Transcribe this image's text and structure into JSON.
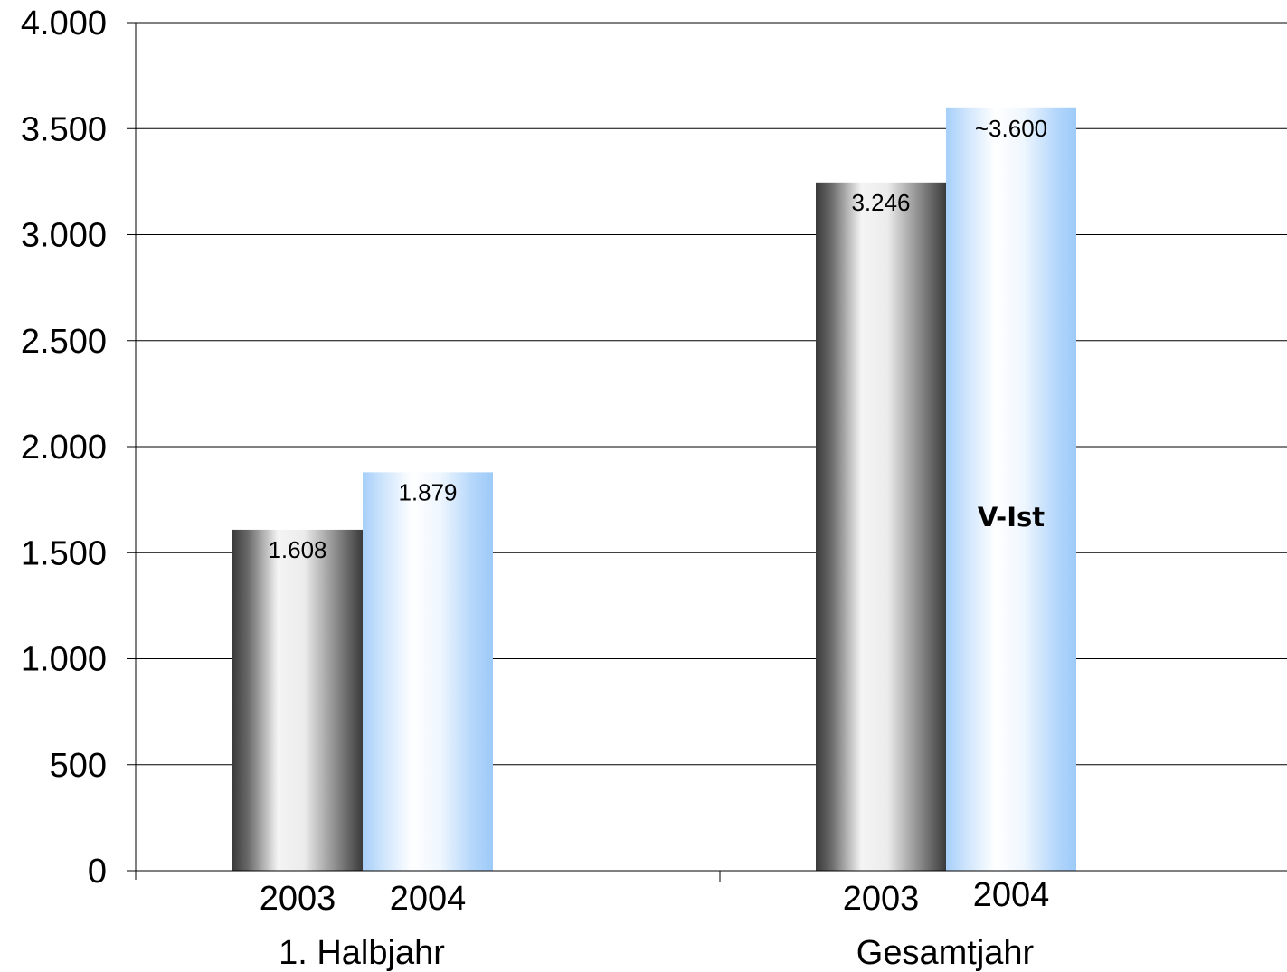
{
  "chart_data": {
    "type": "bar",
    "groups": [
      "1. Halbjahr",
      "Gesamtjahr"
    ],
    "bars": [
      {
        "group": "1. Halbjahr",
        "year": "2003",
        "value": 1608,
        "label": "1.608",
        "style": "grey"
      },
      {
        "group": "1. Halbjahr",
        "year": "2004",
        "value": 1879,
        "label": "1.879",
        "style": "blue"
      },
      {
        "group": "Gesamtjahr",
        "year": "2003",
        "value": 3246,
        "label": "3.246",
        "style": "grey"
      },
      {
        "group": "Gesamtjahr",
        "year": "2004",
        "value": 3600,
        "label": "~3.600",
        "style": "blue"
      }
    ],
    "annotation": "V-Ist",
    "ylim": [
      0,
      4000
    ],
    "yticks": [
      0,
      500,
      1000,
      1500,
      2000,
      2500,
      3000,
      3500,
      4000
    ],
    "ytick_labels": [
      "0",
      "500",
      "1.000",
      "1.500",
      "2.000",
      "2.500",
      "3.000",
      "3.500",
      "4.000"
    ],
    "grid": true,
    "title": "",
    "xlabel": "",
    "ylabel": "",
    "colors": {
      "grey_dark": "#3a3a3a",
      "grey_light": "#ffffff",
      "blue_mid": "#9dcaf8",
      "blue_light": "#ffffff",
      "grid": "#000000"
    }
  }
}
